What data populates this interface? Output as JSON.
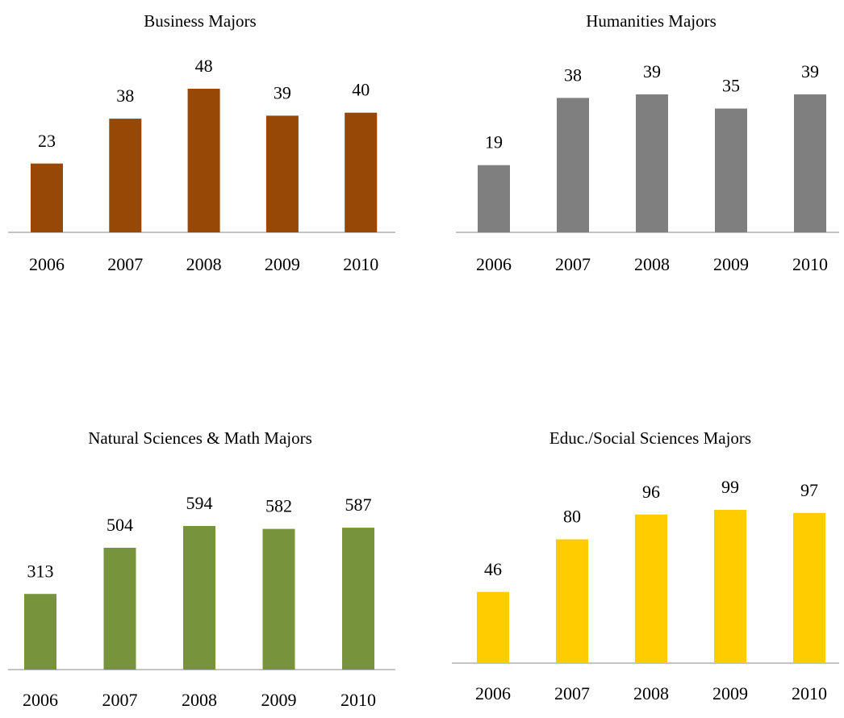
{
  "chart_data": [
    {
      "type": "bar",
      "title": "Business Majors",
      "categories": [
        "2006",
        "2007",
        "2008",
        "2009",
        "2010"
      ],
      "values": [
        23,
        38,
        48,
        39,
        40
      ],
      "color": "#974706"
    },
    {
      "type": "bar",
      "title": "Humanities Majors",
      "categories": [
        "2006",
        "2007",
        "2008",
        "2009",
        "2010"
      ],
      "values": [
        19,
        38,
        39,
        35,
        39
      ],
      "color": "#7f7f7f"
    },
    {
      "type": "bar",
      "title": "Natural Sciences & Math Majors",
      "categories": [
        "2006",
        "2007",
        "2008",
        "2009",
        "2010"
      ],
      "values": [
        313,
        504,
        594,
        582,
        587
      ],
      "color": "#77933c"
    },
    {
      "type": "bar",
      "title": "Educ./Social Sciences Majors",
      "categories": [
        "2006",
        "2007",
        "2008",
        "2009",
        "2010"
      ],
      "values": [
        46,
        80,
        96,
        99,
        97
      ],
      "color": "#ffcc00"
    }
  ]
}
